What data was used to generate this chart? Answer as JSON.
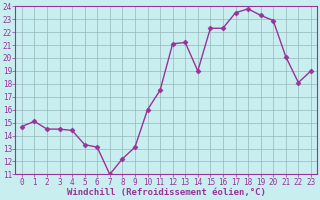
{
  "x": [
    0,
    1,
    2,
    3,
    4,
    5,
    6,
    7,
    8,
    9,
    10,
    11,
    12,
    13,
    14,
    15,
    16,
    17,
    18,
    19,
    20,
    21,
    22,
    23
  ],
  "y": [
    14.7,
    15.1,
    14.5,
    14.5,
    14.4,
    13.3,
    13.1,
    11.0,
    12.2,
    13.1,
    16.0,
    17.5,
    21.1,
    21.2,
    19.0,
    22.3,
    22.3,
    23.5,
    23.8,
    23.3,
    22.9,
    20.1,
    18.1,
    19.0
  ],
  "line_color": "#993399",
  "marker": "D",
  "marker_size": 2.5,
  "bg_color": "#c8eef0",
  "grid_color": "#9ab8ba",
  "xlabel": "Windchill (Refroidissement éolien,°C)",
  "xlabel_color": "#993399",
  "tick_color": "#993399",
  "spine_color": "#993399",
  "ylim": [
    11,
    24
  ],
  "xlim": [
    -0.5,
    23.5
  ],
  "yticks": [
    11,
    12,
    13,
    14,
    15,
    16,
    17,
    18,
    19,
    20,
    21,
    22,
    23,
    24
  ],
  "xticks": [
    0,
    1,
    2,
    3,
    4,
    5,
    6,
    7,
    8,
    9,
    10,
    11,
    12,
    13,
    14,
    15,
    16,
    17,
    18,
    19,
    20,
    21,
    22,
    23
  ],
  "tick_fontsize": 5.5,
  "xlabel_fontsize": 6.5,
  "linewidth": 1.0
}
